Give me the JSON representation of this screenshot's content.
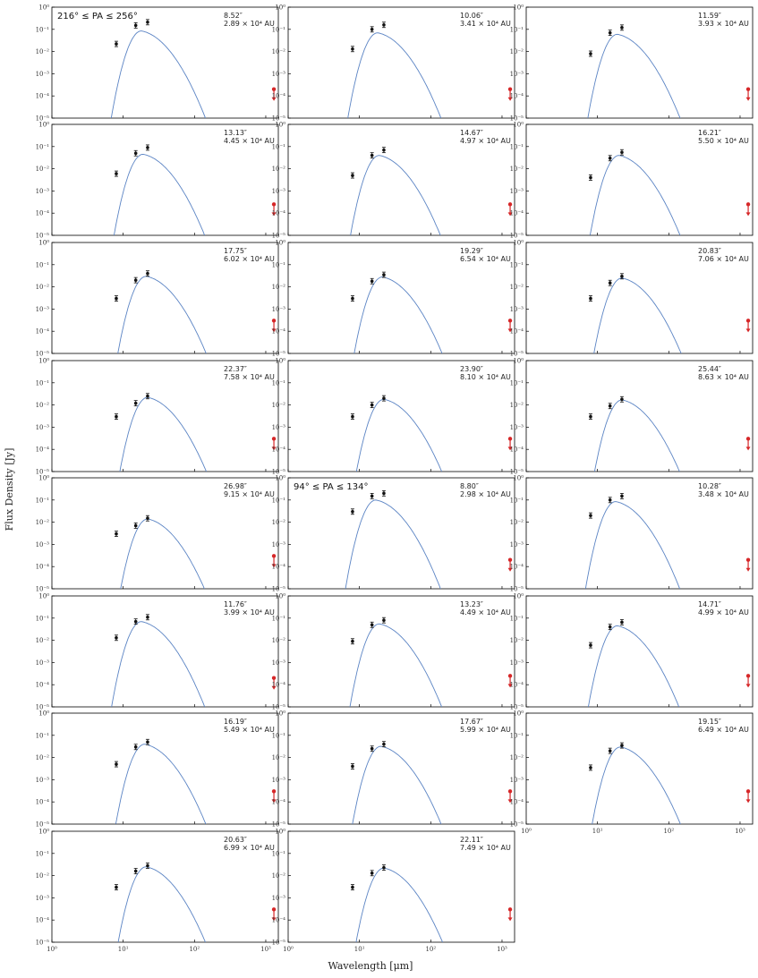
{
  "figure": {
    "xlabel": "Wavelength [μm]",
    "ylabel": "Flux Density [Jy]"
  },
  "chart_data": {
    "type": "scatter",
    "xscale": "log",
    "yscale": "log",
    "xlim": [
      1,
      1500
    ],
    "ylim": [
      1e-05,
      1
    ],
    "x_ticks": [
      "10⁰",
      "10¹",
      "10²",
      "10³"
    ],
    "y_ticks": [
      "10⁻⁵",
      "10⁻⁴",
      "10⁻³",
      "10⁻²",
      "10⁻¹",
      "10⁰"
    ],
    "data_wavelengths": [
      8,
      15,
      22
    ],
    "upper_limit_wavelength": 1300,
    "colors": {
      "data": "#111111",
      "model": "#5b84c4",
      "limit": "#d62728"
    },
    "panels": [
      {
        "pa_label": "216° ≤ PA ≤ 256°",
        "radius": "8.52″",
        "distance": "2.89 × 10⁴ AU",
        "points": [
          0.022,
          0.15,
          0.21
        ],
        "limit": 0.0002,
        "peak": 0.085,
        "peak_wl": 18
      },
      {
        "radius": "10.06″",
        "distance": "3.41 × 10⁴ AU",
        "points": [
          0.013,
          0.1,
          0.16
        ],
        "limit": 0.0002,
        "peak": 0.07,
        "peak_wl": 18
      },
      {
        "radius": "11.59″",
        "distance": "3.93 × 10⁴ AU",
        "points": [
          0.008,
          0.07,
          0.12
        ],
        "limit": 0.0002,
        "peak": 0.06,
        "peak_wl": 19
      },
      {
        "radius": "13.13″",
        "distance": "4.45 × 10⁴ AU",
        "points": [
          0.006,
          0.05,
          0.09
        ],
        "limit": 0.00025,
        "peak": 0.045,
        "peak_wl": 19
      },
      {
        "radius": "14.67″",
        "distance": "4.97 × 10⁴ AU",
        "points": [
          0.005,
          0.04,
          0.07
        ],
        "limit": 0.00025,
        "peak": 0.04,
        "peak_wl": 19
      },
      {
        "radius": "16.21″",
        "distance": "5.50 × 10⁴ AU",
        "points": [
          0.004,
          0.03,
          0.055
        ],
        "limit": 0.00025,
        "peak": 0.04,
        "peak_wl": 20
      },
      {
        "radius": "17.75″",
        "distance": "6.02 × 10⁴ AU",
        "points": [
          0.003,
          0.02,
          0.04
        ],
        "limit": 0.0003,
        "peak": 0.03,
        "peak_wl": 21
      },
      {
        "radius": "19.29″",
        "distance": "6.54 × 10⁴ AU",
        "points": [
          0.003,
          0.018,
          0.035
        ],
        "limit": 0.0003,
        "peak": 0.028,
        "peak_wl": 21
      },
      {
        "radius": "20.83″",
        "distance": "7.06 × 10⁴ AU",
        "points": [
          0.003,
          0.015,
          0.03
        ],
        "limit": 0.0003,
        "peak": 0.025,
        "peak_wl": 22
      },
      {
        "radius": "22.37″",
        "distance": "7.58 × 10⁴ AU",
        "points": [
          0.003,
          0.012,
          0.025
        ],
        "limit": 0.0003,
        "peak": 0.022,
        "peak_wl": 22
      },
      {
        "radius": "23.90″",
        "distance": "8.10 × 10⁴ AU",
        "points": [
          0.003,
          0.01,
          0.02
        ],
        "limit": 0.0003,
        "peak": 0.018,
        "peak_wl": 22
      },
      {
        "radius": "25.44″",
        "distance": "8.63 × 10⁴ AU",
        "points": [
          0.003,
          0.009,
          0.018
        ],
        "limit": 0.0003,
        "peak": 0.017,
        "peak_wl": 22
      },
      {
        "radius": "26.98″",
        "distance": "9.15 × 10⁴ AU",
        "points": [
          0.003,
          0.007,
          0.015
        ],
        "limit": 0.0003,
        "peak": 0.014,
        "peak_wl": 22
      },
      {
        "pa_label": "94° ≤ PA ≤ 134°",
        "radius": "8.80″",
        "distance": "2.98 × 10⁴ AU",
        "points": [
          0.03,
          0.15,
          0.2
        ],
        "limit": 0.0002,
        "peak": 0.1,
        "peak_wl": 17
      },
      {
        "radius": "10.28″",
        "distance": "3.48 × 10⁴ AU",
        "points": [
          0.02,
          0.1,
          0.15
        ],
        "limit": 0.0002,
        "peak": 0.085,
        "peak_wl": 18
      },
      {
        "radius": "11.76″",
        "distance": "3.99 × 10⁴ AU",
        "points": [
          0.013,
          0.07,
          0.11
        ],
        "limit": 0.0002,
        "peak": 0.07,
        "peak_wl": 18
      },
      {
        "radius": "13.23″",
        "distance": "4.49 × 10⁴ AU",
        "points": [
          0.009,
          0.05,
          0.08
        ],
        "limit": 0.00025,
        "peak": 0.055,
        "peak_wl": 19
      },
      {
        "radius": "14.71″",
        "distance": "4.99 × 10⁴ AU",
        "points": [
          0.006,
          0.04,
          0.065
        ],
        "limit": 0.00025,
        "peak": 0.045,
        "peak_wl": 19
      },
      {
        "radius": "16.19″",
        "distance": "5.49 × 10⁴ AU",
        "points": [
          0.005,
          0.03,
          0.05
        ],
        "limit": 0.0003,
        "peak": 0.04,
        "peak_wl": 20
      },
      {
        "radius": "17.67″",
        "distance": "5.99 × 10⁴ AU",
        "points": [
          0.004,
          0.025,
          0.04
        ],
        "limit": 0.0003,
        "peak": 0.032,
        "peak_wl": 20
      },
      {
        "radius": "19.15″",
        "distance": "6.49 × 10⁴ AU",
        "points": [
          0.0035,
          0.02,
          0.035
        ],
        "limit": 0.0003,
        "peak": 0.03,
        "peak_wl": 21
      },
      {
        "radius": "20.63″",
        "distance": "6.99 × 10⁴ AU",
        "points": [
          0.003,
          0.016,
          0.028
        ],
        "limit": 0.0003,
        "peak": 0.025,
        "peak_wl": 21
      },
      {
        "radius": "22.11″",
        "distance": "7.49 × 10⁴ AU",
        "points": [
          0.003,
          0.013,
          0.023
        ],
        "limit": 0.0003,
        "peak": 0.022,
        "peak_wl": 22
      }
    ]
  }
}
